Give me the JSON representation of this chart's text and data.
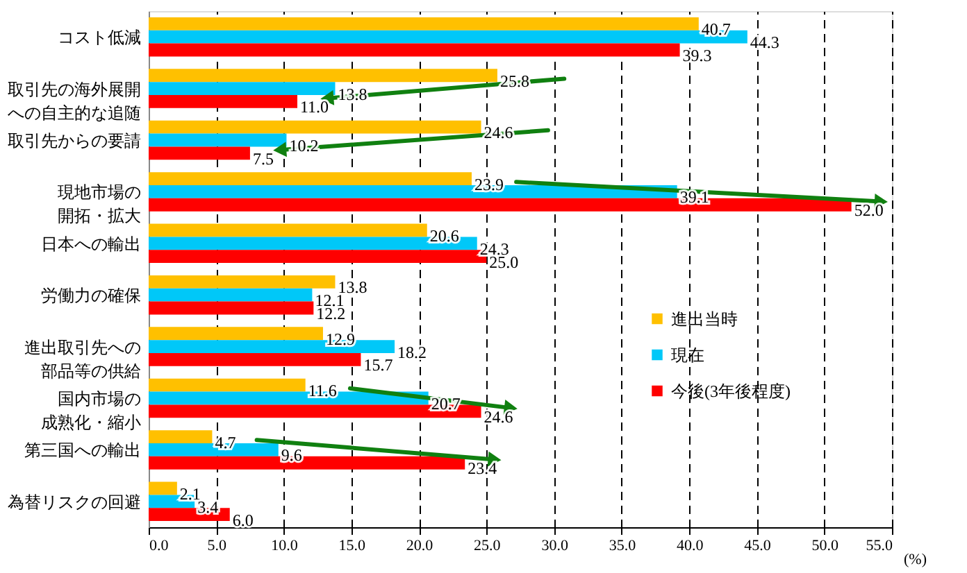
{
  "chart_data": {
    "type": "bar",
    "orientation": "horizontal",
    "xlabel": "(%)",
    "categories": [
      "コスト低減",
      "取引先の海外展開への自主的な追随",
      "取引先からの要請",
      "現地市場の開拓・拡大",
      "日本への輸出",
      "労働力の確保",
      "進出取引先への部品等の供給",
      "国内市場の成熟化・縮小",
      "第三国への輸出",
      "為替リスクの回避"
    ],
    "series": [
      {
        "name": "進出当時",
        "color": "#ffc000",
        "values": [
          40.7,
          25.8,
          24.6,
          23.9,
          20.6,
          13.8,
          12.9,
          11.6,
          4.7,
          2.1
        ],
        "value_labels": [
          "40.7",
          "25.8",
          "24.6",
          "23.9",
          "20.6",
          "13.8",
          "12.9",
          "11.6",
          "4.7",
          "2.1"
        ]
      },
      {
        "name": "現在",
        "color": "#00c8f8",
        "values": [
          44.3,
          13.8,
          10.2,
          39.1,
          24.3,
          12.1,
          18.2,
          20.7,
          9.6,
          3.4
        ],
        "value_labels": [
          "44.3",
          "13.8",
          "10.2",
          "39.1",
          "24.3",
          "12.1",
          "18.2",
          "20.7",
          "9.6",
          "3.4"
        ]
      },
      {
        "name": "今後(3年後程度)",
        "color": "#ff0000",
        "values": [
          39.3,
          11.0,
          7.5,
          52.0,
          25.0,
          12.2,
          15.7,
          24.6,
          23.4,
          6.0
        ],
        "value_labels": [
          "39.3",
          "11.0",
          "7.5",
          "52.0",
          "25.0",
          "12.2",
          "15.7",
          "24.6",
          "23.4",
          "6.0"
        ]
      }
    ],
    "xlim": [
      0,
      55
    ],
    "xticks": [
      {
        "value": 0,
        "label": "0.0"
      },
      {
        "value": 5,
        "label": "5.0"
      },
      {
        "value": 10,
        "label": "10.0"
      },
      {
        "value": 15,
        "label": "15.0"
      },
      {
        "value": 20,
        "label": "20.0"
      },
      {
        "value": 25,
        "label": "25.0"
      },
      {
        "value": 30,
        "label": "30.0"
      },
      {
        "value": 35,
        "label": "35.0"
      },
      {
        "value": 40,
        "label": "40.0"
      },
      {
        "value": 45,
        "label": "45.0"
      },
      {
        "value": 50,
        "label": "50.0"
      },
      {
        "value": 55,
        "label": "55.0"
      }
    ],
    "grid": "x",
    "legend": "right"
  }
}
